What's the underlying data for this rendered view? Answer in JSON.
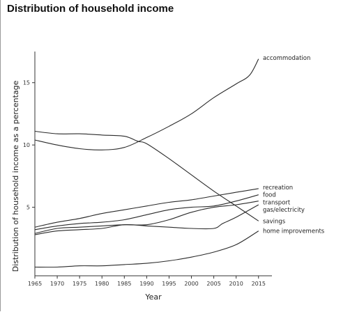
{
  "page": {
    "title": "Distribution of household income"
  },
  "chart_data": {
    "type": "line",
    "title": "Distribution of household income",
    "xlabel": "Year",
    "ylabel": "Distribution of household income as a percentage",
    "xlim": [
      1965,
      2018
    ],
    "ylim": [
      -0.5,
      17.5
    ],
    "x_ticks": [
      1965,
      1970,
      1975,
      1980,
      1985,
      1990,
      1995,
      2000,
      2005,
      2010,
      2015
    ],
    "y_ticks": [
      5,
      10,
      15
    ],
    "grid": false,
    "legend": "none (labels at line ends, right)",
    "series": [
      {
        "name": "accommodation",
        "x": [
          1965,
          1970,
          1975,
          1980,
          1985,
          1990,
          1995,
          2000,
          2005,
          2010,
          2013,
          2015
        ],
        "values": [
          10.4,
          10.0,
          9.7,
          9.6,
          9.8,
          10.6,
          11.5,
          12.5,
          13.8,
          14.9,
          15.6,
          16.9
        ],
        "label_y": 17.0
      },
      {
        "name": "recreation",
        "x": [
          1965,
          1970,
          1975,
          1980,
          1985,
          1990,
          1995,
          2000,
          2005,
          2010,
          2015
        ],
        "values": [
          3.4,
          3.8,
          4.1,
          4.5,
          4.8,
          5.1,
          5.4,
          5.6,
          5.9,
          6.2,
          6.5
        ],
        "label_y": 6.6
      },
      {
        "name": "food",
        "x": [
          1965,
          1970,
          1975,
          1980,
          1985,
          1990,
          1995,
          2000,
          2005,
          2010,
          2015
        ],
        "values": [
          3.2,
          3.5,
          3.7,
          3.8,
          4.0,
          4.4,
          4.8,
          5.0,
          5.1,
          5.5,
          6.0
        ],
        "label_y": 6.0
      },
      {
        "name": "transport",
        "x": [
          1965,
          1970,
          1975,
          1980,
          1985,
          1990,
          1995,
          2000,
          2005,
          2010,
          2015
        ],
        "values": [
          2.9,
          3.3,
          3.4,
          3.5,
          3.6,
          3.6,
          4.0,
          4.6,
          5.0,
          5.2,
          5.5
        ],
        "label_y": 5.4
      },
      {
        "name": "gas/electricity",
        "x": [
          1965,
          1970,
          1975,
          1980,
          1985,
          1990,
          1995,
          2000,
          2005,
          2007,
          2010,
          2015
        ],
        "values": [
          2.8,
          3.1,
          3.2,
          3.3,
          3.6,
          3.5,
          3.4,
          3.3,
          3.3,
          3.7,
          4.2,
          5.2
        ],
        "label_y": 4.8
      },
      {
        "name": "savings",
        "x": [
          1965,
          1970,
          1975,
          1980,
          1985,
          1988,
          1990,
          1995,
          2000,
          2005,
          2010,
          2015
        ],
        "values": [
          11.1,
          10.9,
          10.9,
          10.8,
          10.7,
          10.3,
          10.1,
          8.9,
          7.6,
          6.3,
          5.1,
          3.9
        ],
        "label_y": 3.9
      },
      {
        "name": "home improvements",
        "x": [
          1965,
          1970,
          1975,
          1980,
          1985,
          1990,
          1995,
          2000,
          2005,
          2010,
          2015
        ],
        "values": [
          0.2,
          0.2,
          0.3,
          0.3,
          0.4,
          0.5,
          0.7,
          1.0,
          1.4,
          2.0,
          3.1
        ],
        "label_y": 3.1
      }
    ]
  }
}
